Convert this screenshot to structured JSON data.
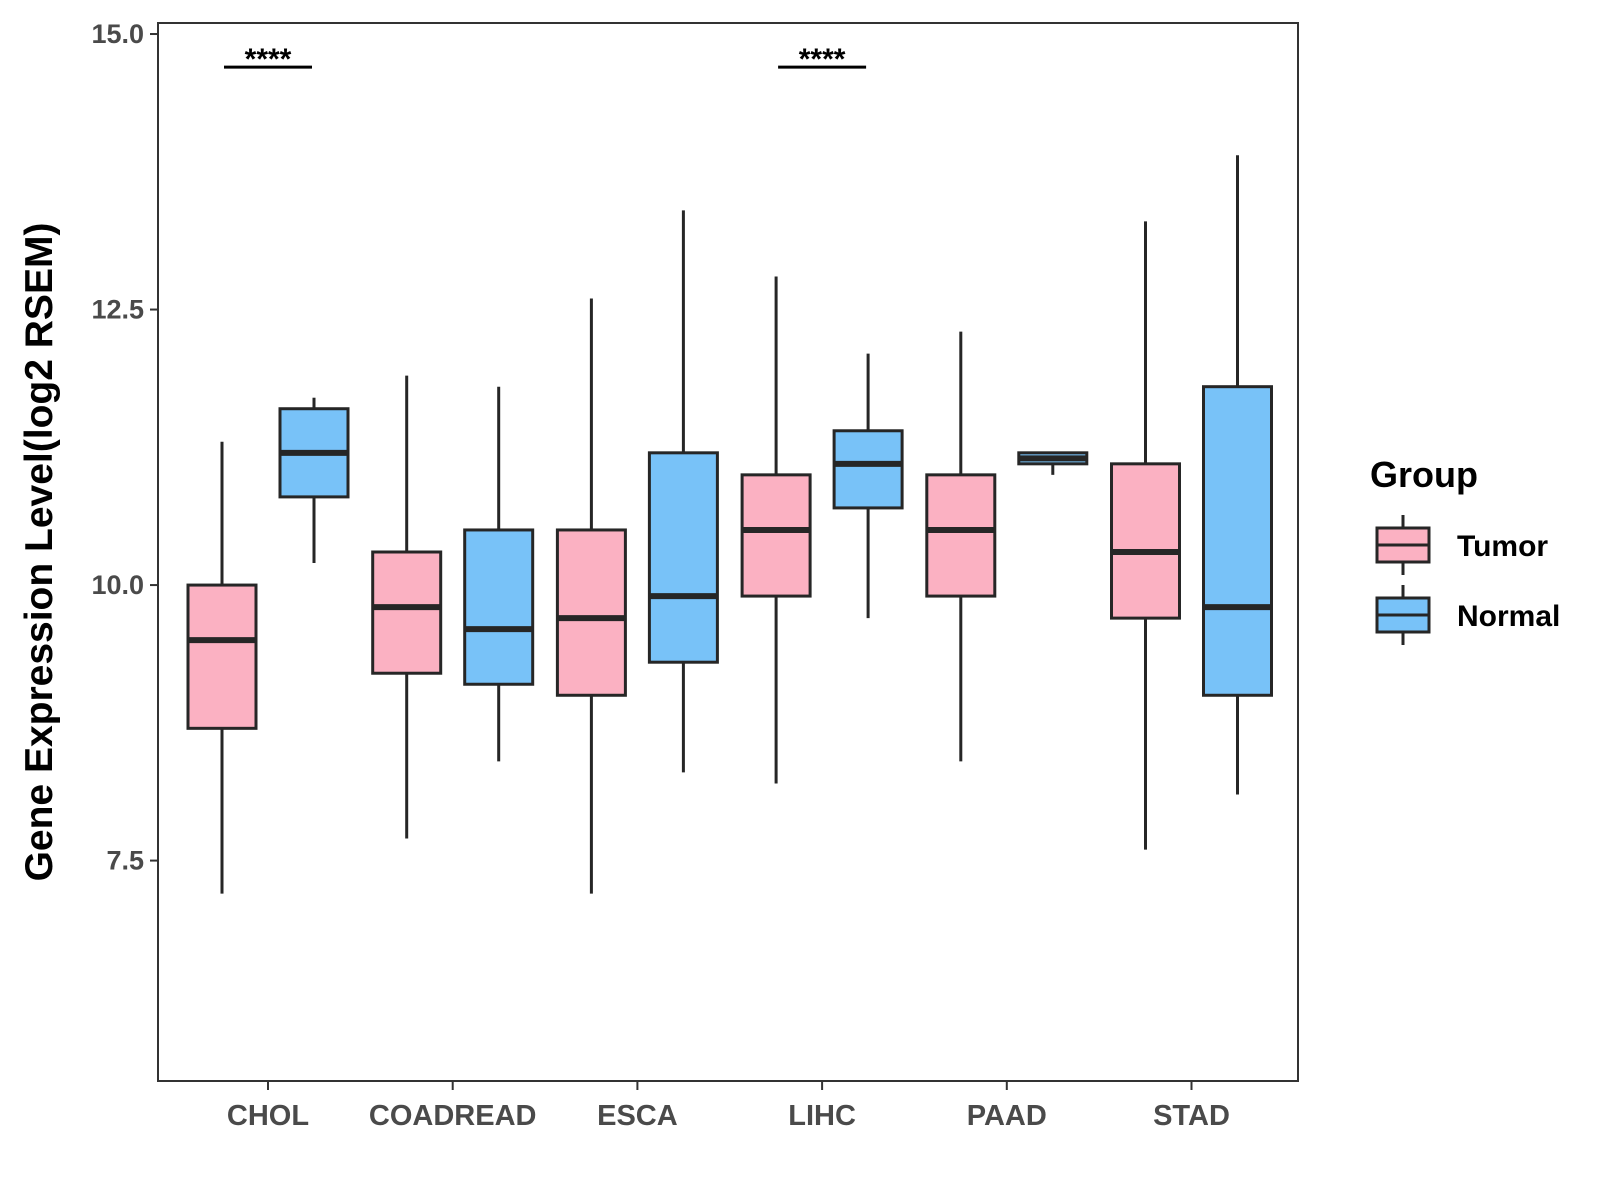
{
  "chart_data": {
    "type": "boxplot",
    "title": "",
    "xlabel": "",
    "ylabel": "Gene Expression Level(log2 RSEM)",
    "ylim": [
      5.5,
      15.1
    ],
    "yticks": [
      7.5,
      10.0,
      12.5,
      15.0
    ],
    "ytick_labels": [
      "7.5",
      "10.0",
      "12.5",
      "15.0"
    ],
    "categories": [
      "CHOL",
      "COADREAD",
      "ESCA",
      "LIHC",
      "PAAD",
      "STAD"
    ],
    "legend": {
      "title": "Group",
      "position": "right",
      "items": [
        {
          "label": "Tumor",
          "color": "#fbb1c2"
        },
        {
          "label": "Normal",
          "color": "#78c2f8"
        }
      ]
    },
    "series": [
      {
        "name": "Tumor",
        "color": "#fbb1c2",
        "boxes": [
          {
            "category": "CHOL",
            "min": 7.2,
            "q1": 8.7,
            "median": 9.5,
            "q3": 10.0,
            "max": 11.3
          },
          {
            "category": "COADREAD",
            "min": 7.7,
            "q1": 9.2,
            "median": 9.8,
            "q3": 10.3,
            "max": 11.9
          },
          {
            "category": "ESCA",
            "min": 7.2,
            "q1": 9.0,
            "median": 9.7,
            "q3": 10.5,
            "max": 12.6
          },
          {
            "category": "LIHC",
            "min": 8.2,
            "q1": 9.9,
            "median": 10.5,
            "q3": 11.0,
            "max": 12.8
          },
          {
            "category": "PAAD",
            "min": 8.4,
            "q1": 9.9,
            "median": 10.5,
            "q3": 11.0,
            "max": 12.3
          },
          {
            "category": "STAD",
            "min": 7.6,
            "q1": 9.7,
            "median": 10.3,
            "q3": 11.1,
            "max": 13.3
          }
        ]
      },
      {
        "name": "Normal",
        "color": "#78c2f8",
        "boxes": [
          {
            "category": "CHOL",
            "min": 10.2,
            "q1": 10.8,
            "median": 11.2,
            "q3": 11.6,
            "max": 11.7
          },
          {
            "category": "COADREAD",
            "min": 8.4,
            "q1": 9.1,
            "median": 9.6,
            "q3": 10.5,
            "max": 11.8
          },
          {
            "category": "ESCA",
            "min": 8.3,
            "q1": 9.3,
            "median": 9.9,
            "q3": 11.2,
            "max": 13.4
          },
          {
            "category": "LIHC",
            "min": 9.7,
            "q1": 10.7,
            "median": 11.1,
            "q3": 11.4,
            "max": 12.1
          },
          {
            "category": "PAAD",
            "min": 11.0,
            "q1": 11.1,
            "median": 11.15,
            "q3": 11.2,
            "max": 11.2
          },
          {
            "category": "STAD",
            "min": 8.1,
            "q1": 9.0,
            "median": 9.8,
            "q3": 11.8,
            "max": 13.9
          }
        ]
      }
    ],
    "annotations": [
      {
        "category": "CHOL",
        "text": "****",
        "y": 14.7
      },
      {
        "category": "LIHC",
        "text": "****",
        "y": 14.7
      }
    ]
  }
}
